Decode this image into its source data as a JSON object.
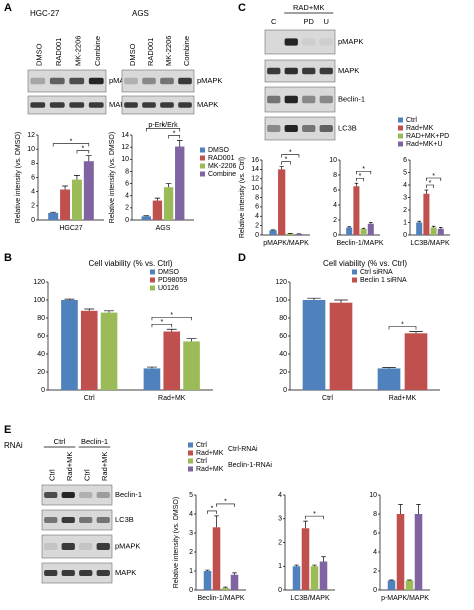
{
  "panel_labels": [
    "A",
    "B",
    "C",
    "D",
    "E"
  ],
  "blots": [
    {
      "title": "HGC-27",
      "lanes": [
        "DMSO",
        "RAD001",
        "MK-2206",
        "Combine"
      ],
      "rows": [
        "pMAPK",
        "MAPK"
      ]
    },
    {
      "title": "AGS",
      "lanes": [
        "DMSO",
        "RAD001",
        "MK-2206",
        "Combine"
      ],
      "rows": [
        "pMAPK",
        "MAPK"
      ]
    },
    {
      "groups": [
        "RAD+MK"
      ],
      "lanes": [
        "C",
        null,
        "PD",
        "U"
      ],
      "rows": [
        "pMAPK",
        "MAPK",
        "Beclin-1",
        "LC3B"
      ]
    },
    {
      "title": "RNAi",
      "groups": [
        "Ctrl",
        "Beclin-1"
      ],
      "lanes": [
        "Ctrl",
        "Rad+MK",
        "Ctrl",
        "Rad+MK"
      ],
      "rows": [
        "Beclin-1",
        "LC3B",
        "pMAPK",
        "MAPK"
      ]
    }
  ],
  "chart_data": [
    {
      "type": "bar",
      "y_label": "Relative intensity (vs. DMSO)",
      "categories": [
        "HGC27"
      ],
      "series": [
        {
          "name": "DMSO",
          "color": "#4f81bd",
          "values": [
            1
          ],
          "errors": [
            0.1
          ]
        },
        {
          "name": "RAD001",
          "color": "#c0504d",
          "values": [
            4.3
          ],
          "errors": [
            0.5
          ]
        },
        {
          "name": "MK-2206",
          "color": "#9bbb59",
          "values": [
            5.7
          ],
          "errors": [
            0.6
          ]
        },
        {
          "name": "Combine",
          "color": "#8064a2",
          "values": [
            8.3
          ],
          "errors": [
            0.8
          ]
        }
      ],
      "ylim": [
        0,
        12
      ],
      "yticks": [
        0,
        2,
        4,
        6,
        8,
        10,
        12
      ],
      "significance": [
        "*",
        "*"
      ]
    },
    {
      "type": "bar",
      "annotation": "p-Erk/Erk",
      "y_label": "Relative intensity (vs. DMSO)",
      "categories": [
        "AGS"
      ],
      "series": [
        {
          "name": "DMSO",
          "color": "#4f81bd",
          "values": [
            0.6
          ],
          "errors": [
            0.1
          ]
        },
        {
          "name": "RAD001",
          "color": "#c0504d",
          "values": [
            3.2
          ],
          "errors": [
            0.4
          ]
        },
        {
          "name": "MK-2206",
          "color": "#9bbb59",
          "values": [
            5.4
          ],
          "errors": [
            0.6
          ]
        },
        {
          "name": "Combine",
          "color": "#8064a2",
          "values": [
            12.1
          ],
          "errors": [
            1
          ]
        }
      ],
      "ylim": [
        0,
        14
      ],
      "yticks": [
        0,
        2,
        4,
        6,
        8,
        10,
        12,
        14
      ],
      "legend": "right",
      "significance": [
        "*",
        "*"
      ]
    },
    {
      "type": "bar",
      "title": "Cell viability (% vs. Ctrl)",
      "categories": [
        "Ctrl",
        "Rad+MK"
      ],
      "series": [
        {
          "name": "DMSO",
          "color": "#4f81bd",
          "values": [
            100,
            24
          ],
          "errors": [
            1,
            1.5
          ]
        },
        {
          "name": "PD98059",
          "color": "#c0504d",
          "values": [
            88,
            65
          ],
          "errors": [
            2,
            2.5
          ]
        },
        {
          "name": "U0126",
          "color": "#9bbb59",
          "values": [
            86,
            54
          ],
          "errors": [
            2,
            3
          ]
        }
      ],
      "ylim": [
        0,
        120
      ],
      "yticks": [
        0,
        20,
        40,
        60,
        80,
        100,
        120
      ],
      "legend": "top-right",
      "significance": [
        "*",
        "*"
      ]
    },
    {
      "type": "bar",
      "y_label": "Relative intensity (vs. Ctrl)",
      "categories": [
        "pMAPK/MAPK"
      ],
      "series": [
        {
          "name": "Ctrl",
          "color": "#4f81bd",
          "values": [
            1
          ],
          "errors": [
            0.1
          ]
        },
        {
          "name": "Rad+MK",
          "color": "#c0504d",
          "values": [
            14
          ],
          "errors": [
            0.6
          ]
        },
        {
          "name": "RAD+MK+PD",
          "color": "#9bbb59",
          "values": [
            0.3
          ],
          "errors": [
            0.05
          ]
        },
        {
          "name": "Rad+MK+U",
          "color": "#8064a2",
          "values": [
            0.2
          ],
          "errors": [
            0.05
          ]
        }
      ],
      "ylim": [
        0,
        16
      ],
      "yticks": [
        0,
        2,
        4,
        6,
        8,
        10,
        12,
        14,
        16
      ],
      "legend": "top-right",
      "significance": [
        "*",
        "*"
      ]
    },
    {
      "type": "bar",
      "categories": [
        "Beclin-1/MAPK"
      ],
      "series": [
        {
          "name": "Ctrl",
          "color": "#4f81bd",
          "values": [
            1
          ],
          "errors": [
            0.1
          ]
        },
        {
          "name": "Rad+MK",
          "color": "#c0504d",
          "values": [
            6.5
          ],
          "errors": [
            0.4
          ]
        },
        {
          "name": "RAD+MK+PD",
          "color": "#9bbb59",
          "values": [
            0.8
          ],
          "errors": [
            0.1
          ]
        },
        {
          "name": "Rad+MK+U",
          "color": "#8064a2",
          "values": [
            1.5
          ],
          "errors": [
            0.15
          ]
        }
      ],
      "ylim": [
        0,
        10
      ],
      "yticks": [
        0,
        2,
        4,
        6,
        8,
        10
      ],
      "significance": [
        "*",
        "*"
      ]
    },
    {
      "type": "bar",
      "categories": [
        "LC3B/MAPK"
      ],
      "series": [
        {
          "name": "Ctrl",
          "color": "#4f81bd",
          "values": [
            1
          ],
          "errors": [
            0.1
          ]
        },
        {
          "name": "Rad+MK",
          "color": "#c0504d",
          "values": [
            3.3
          ],
          "errors": [
            0.3
          ]
        },
        {
          "name": "RAD+MK+PD",
          "color": "#9bbb59",
          "values": [
            0.6
          ],
          "errors": [
            0.1
          ]
        },
        {
          "name": "Rad+MK+U",
          "color": "#8064a2",
          "values": [
            0.5
          ],
          "errors": [
            0.1
          ]
        }
      ],
      "ylim": [
        0,
        6
      ],
      "yticks": [
        0,
        1,
        2,
        3,
        4,
        5,
        6
      ],
      "significance": [
        "*",
        "*"
      ]
    },
    {
      "type": "bar",
      "title": "Cell viability (% vs. Ctrl)",
      "categories": [
        "Ctrl",
        "Rad+MK"
      ],
      "series": [
        {
          "name": "Ctrl siRNA",
          "color": "#4f81bd",
          "values": [
            100,
            24
          ],
          "errors": [
            2,
            1
          ]
        },
        {
          "name": "Beclin 1 siRNA",
          "color": "#c0504d",
          "values": [
            97,
            63
          ],
          "errors": [
            3,
            2
          ]
        }
      ],
      "ylim": [
        0,
        120
      ],
      "yticks": [
        0,
        20,
        40,
        60,
        80,
        100,
        120
      ],
      "legend": "top-right",
      "significance": [
        "*"
      ]
    },
    {
      "type": "bar",
      "y_label": "Relative intensity (vs. DMSO)",
      "categories": [
        "Beclin-1/MAPK"
      ],
      "series": [
        {
          "name": "Ctrl",
          "color": "#4f81bd",
          "values": [
            1
          ],
          "errors": [
            0.05
          ]
        },
        {
          "name": "Rad+MK",
          "color": "#c0504d",
          "values": [
            3.3
          ],
          "errors": [
            0.6
          ]
        },
        {
          "name": "Ctrl",
          "color": "#9bbb59",
          "values": [
            0.1
          ],
          "errors": [
            0.05
          ]
        },
        {
          "name": "Rad+MK",
          "color": "#8064a2",
          "values": [
            0.8
          ],
          "errors": [
            0.1
          ]
        }
      ],
      "ylim": [
        0,
        5
      ],
      "yticks": [
        0,
        1,
        2,
        3,
        4,
        5
      ],
      "legend": "top-left",
      "legend_groups": [
        "Ctrl-RNAi",
        "Beclin-1-RNAi"
      ],
      "significance": [
        "*",
        "*"
      ]
    },
    {
      "type": "bar",
      "categories": [
        "LC3B/MAPK"
      ],
      "series": [
        {
          "name": "Ctrl",
          "color": "#4f81bd",
          "values": [
            1
          ],
          "errors": [
            0.05
          ]
        },
        {
          "name": "Rad+MK",
          "color": "#c0504d",
          "values": [
            2.6
          ],
          "errors": [
            0.3
          ]
        },
        {
          "name": "Ctrl",
          "color": "#9bbb59",
          "values": [
            1
          ],
          "errors": [
            0.05
          ]
        },
        {
          "name": "Rad+MK",
          "color": "#8064a2",
          "values": [
            1.2
          ],
          "errors": [
            0.2
          ]
        }
      ],
      "ylim": [
        0,
        4
      ],
      "yticks": [
        0,
        1,
        2,
        3,
        4
      ],
      "significance": [
        "*"
      ]
    },
    {
      "type": "bar",
      "categories": [
        "p-MAPK/MAPK"
      ],
      "series": [
        {
          "name": "Ctrl",
          "color": "#4f81bd",
          "values": [
            1
          ],
          "errors": [
            0.05
          ]
        },
        {
          "name": "Rad+MK",
          "color": "#c0504d",
          "values": [
            8
          ],
          "errors": [
            1
          ]
        },
        {
          "name": "Ctrl",
          "color": "#9bbb59",
          "values": [
            1
          ],
          "errors": [
            0.05
          ]
        },
        {
          "name": "Rad+MK",
          "color": "#8064a2",
          "values": [
            8
          ],
          "errors": [
            1
          ]
        }
      ],
      "ylim": [
        0,
        10
      ],
      "yticks": [
        0,
        2,
        4,
        6,
        8,
        10
      ]
    }
  ]
}
